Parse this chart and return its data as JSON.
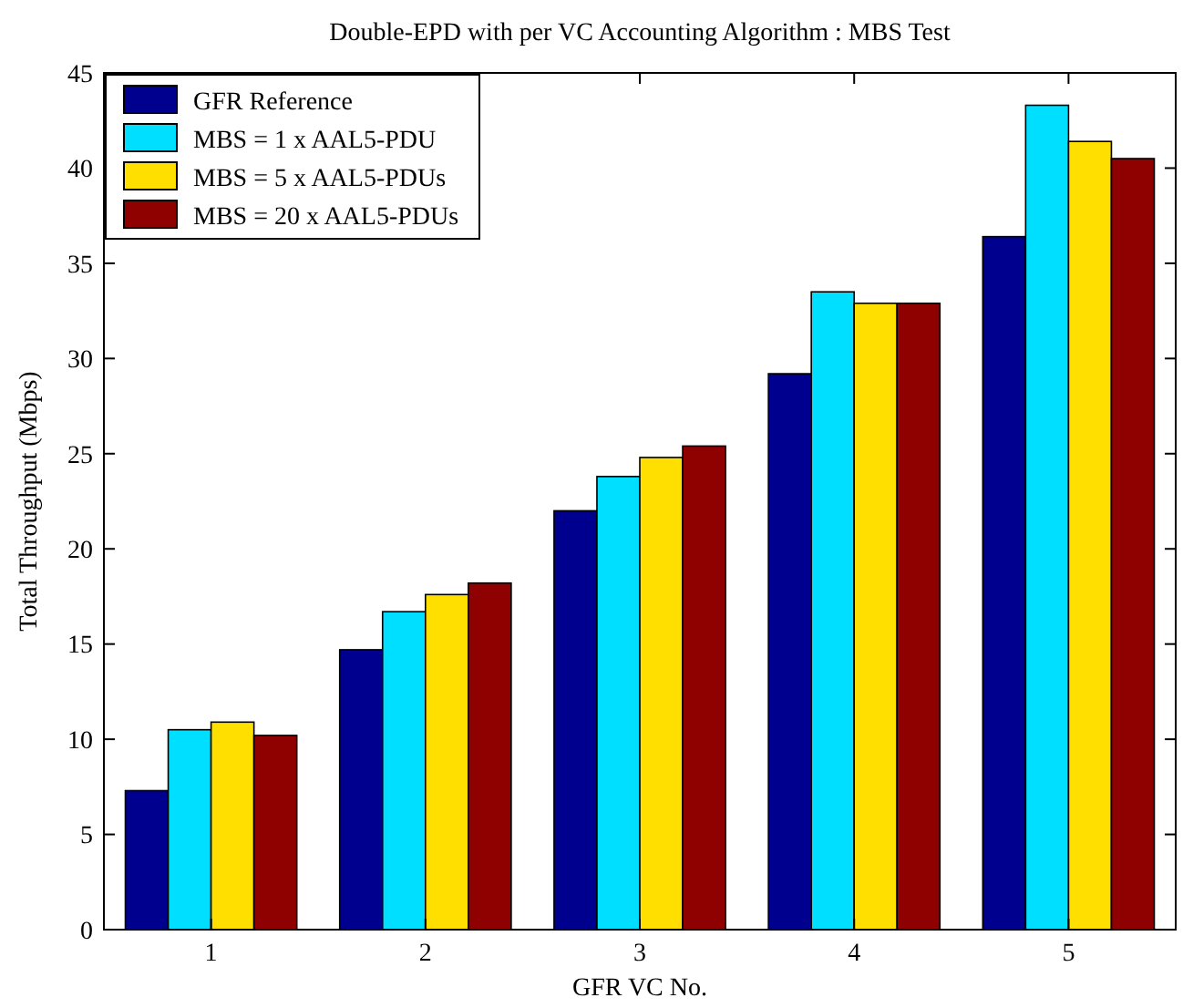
{
  "chart_data": {
    "type": "bar",
    "title": "Double-EPD with per VC Accounting Algorithm : MBS Test",
    "xlabel": "GFR VC No.",
    "ylabel": "Total Throughput (Mbps)",
    "categories": [
      "1",
      "2",
      "3",
      "4",
      "5"
    ],
    "series": [
      {
        "name": "GFR Reference",
        "color": "#00008f",
        "values": [
          7.3,
          14.7,
          22.0,
          29.2,
          36.4
        ]
      },
      {
        "name": "MBS = 1 x AAL5-PDU",
        "color": "#00dfff",
        "values": [
          10.5,
          16.7,
          23.8,
          33.5,
          43.3
        ]
      },
      {
        "name": "MBS = 5 x AAL5-PDUs",
        "color": "#ffdf00",
        "values": [
          10.9,
          17.6,
          24.8,
          32.9,
          41.4
        ]
      },
      {
        "name": "MBS = 20 x AAL5-PDUs",
        "color": "#8f0000",
        "values": [
          10.2,
          18.2,
          25.4,
          32.9,
          40.5
        ]
      }
    ],
    "ylim": [
      0,
      45
    ],
    "yticks": [
      0,
      5,
      10,
      15,
      20,
      25,
      30,
      35,
      40,
      45
    ],
    "grid": false,
    "legend": "top left"
  }
}
